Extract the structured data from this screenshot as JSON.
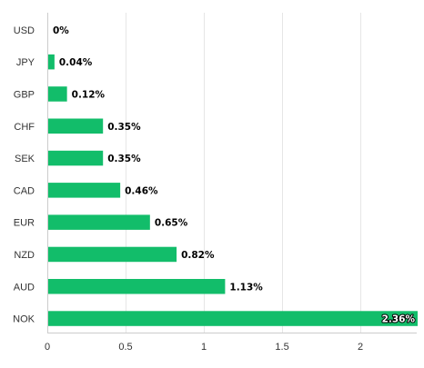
{
  "chart_data": {
    "type": "bar",
    "orientation": "horizontal",
    "categories": [
      "USD",
      "JPY",
      "GBP",
      "CHF",
      "SEK",
      "CAD",
      "EUR",
      "NZD",
      "AUD",
      "NOK"
    ],
    "values": [
      0,
      0.04,
      0.12,
      0.35,
      0.35,
      0.46,
      0.65,
      0.82,
      1.13,
      2.36
    ],
    "data_labels": [
      "0%",
      "0.04%",
      "0.12%",
      "0.35%",
      "0.35%",
      "0.46%",
      "0.65%",
      "0.82%",
      "1.13%",
      "2.36%"
    ],
    "x_ticks": [
      "0",
      "0.5",
      "1",
      "1.5",
      "2"
    ],
    "x_tick_values": [
      0,
      0.5,
      1,
      1.5,
      2
    ],
    "xlim": [
      0,
      2.36
    ],
    "grid": true,
    "title": "",
    "xlabel": "",
    "ylabel": ""
  },
  "colors": {
    "bar": "#12bd6a",
    "grid": "#e6e6e6",
    "axis": "#cccccc"
  }
}
